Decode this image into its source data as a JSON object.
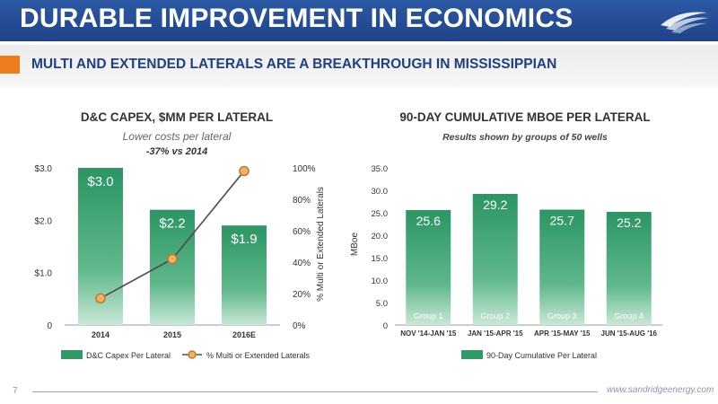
{
  "header": {
    "title": "DURABLE IMPROVEMENT IN ECONOMICS"
  },
  "subheader": {
    "text": "MULTI AND EXTENDED LATERALS ARE A BREAKTHROUGH IN MISSISSIPPIAN"
  },
  "colors": {
    "header_blue": "#2352a0",
    "accent_orange": "#ee7b1e",
    "bar_green": "#2f9a68",
    "line_gray": "#4d4d4d",
    "marker_orange": "#f2b266"
  },
  "footer": {
    "page_number": "7",
    "url": "www.sandridgeenergy.com"
  },
  "chart_data": [
    {
      "type": "bar",
      "title": "D&C CAPEX, $MM PER LATERAL",
      "subtitle": "Lower costs per lateral",
      "annotation": "-37% vs 2014",
      "categories": [
        "2014",
        "2015",
        "2016E"
      ],
      "y_ticks": [
        "$3.0",
        "$2.0",
        "$1.0",
        "0"
      ],
      "ylim": [
        0,
        3.0
      ],
      "series": [
        {
          "name": "D&C Capex Per Lateral",
          "type": "bar",
          "values": [
            3.0,
            2.2,
            1.9
          ],
          "labels": [
            "$3.0",
            "$2.2",
            "$1.9"
          ]
        },
        {
          "name": "% Multi or Extended Laterals",
          "type": "line",
          "axis": "secondary",
          "values": [
            17,
            42,
            98
          ]
        }
      ],
      "y2label": "% Multi or Extended Laterals",
      "y2_ticks": [
        "100%",
        "80%",
        "60%",
        "40%",
        "20%",
        "0%"
      ],
      "y2lim": [
        0,
        100
      ]
    },
    {
      "type": "bar",
      "title": "90-DAY CUMULATIVE MBOE PER LATERAL",
      "subtitle": "Results shown by groups of 50 wells",
      "categories": [
        "NOV '14-JAN '15",
        "JAN '15-APR '15",
        "APR '15-MAY '15",
        "JUN '15-AUG '16"
      ],
      "group_labels": [
        "Group 1",
        "Group 2",
        "Group 3",
        "Group 4"
      ],
      "ylabel": "MBoe",
      "y_ticks": [
        "35.0",
        "30.0",
        "25.0",
        "20.0",
        "15.0",
        "10.0",
        "5.0",
        "0"
      ],
      "ylim": [
        0,
        35
      ],
      "series": [
        {
          "name": "90-Day Cumulative Per Lateral",
          "values": [
            25.6,
            29.2,
            25.7,
            25.2
          ],
          "labels": [
            "25.6",
            "29.2",
            "25.7",
            "25.2"
          ]
        }
      ]
    }
  ]
}
